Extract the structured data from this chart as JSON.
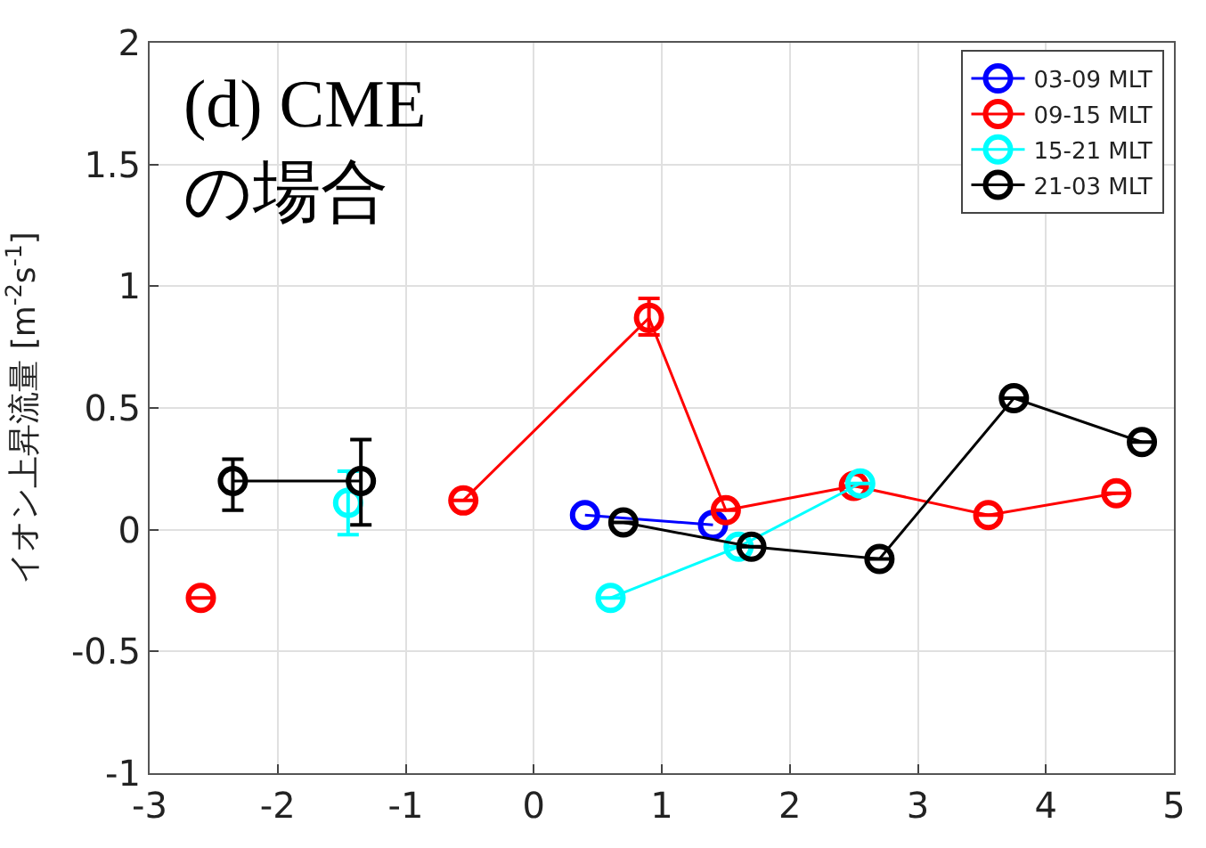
{
  "chart_data": {
    "type": "line",
    "ylabel": "イオン上昇流量 [m$^{-2}$s$^{-1}$]",
    "annotations": [
      "(d) CME\nの場合"
    ],
    "xlim": [
      -3,
      5
    ],
    "xticks": [
      -3,
      -2,
      -1,
      0,
      1,
      2,
      3,
      4,
      5
    ],
    "ylim": [
      -1,
      2
    ],
    "yticks": [
      -1,
      -0.5,
      0,
      0.5,
      1,
      1.5,
      2
    ],
    "grid": true,
    "legend": "top right",
    "marker": "circle",
    "line_style": "solid",
    "series": [
      {
        "name": "03-09 MLT",
        "color": "#0000ff",
        "x": [
          0.4,
          1.4
        ],
        "values": [
          0.06,
          0.02
        ],
        "errors": [
          null,
          null
        ]
      },
      {
        "name": "09-15 MLT",
        "color": "#ff0000",
        "x": [
          -2.6,
          -1.5,
          -0.55,
          0.9,
          1.5,
          2.5,
          3.55,
          4.55
        ],
        "values": [
          -0.28,
          null,
          0.12,
          0.87,
          0.08,
          0.18,
          0.06,
          0.15
        ],
        "errors": [
          null,
          null,
          null,
          [
            0.8,
            0.95
          ],
          null,
          null,
          null,
          null
        ]
      },
      {
        "name": "15-21 MLT",
        "color": "#00ffff",
        "x": [
          -1.45,
          -0.5,
          0.6,
          1.6,
          2.55
        ],
        "values": [
          0.11,
          null,
          -0.28,
          -0.07,
          0.19
        ],
        "errors": [
          [
            -0.02,
            0.24
          ],
          null,
          null,
          null,
          null
        ]
      },
      {
        "name": "21-03 MLT",
        "color": "#000000",
        "x": [
          -2.35,
          -1.35,
          -0.5,
          0.7,
          1.7,
          2.7,
          3.75,
          4.75
        ],
        "values": [
          0.2,
          0.2,
          null,
          0.03,
          -0.07,
          -0.12,
          0.54,
          0.36
        ],
        "errors": [
          [
            0.08,
            0.29
          ],
          [
            0.02,
            0.37
          ],
          null,
          null,
          null,
          null,
          null,
          null
        ]
      }
    ]
  }
}
